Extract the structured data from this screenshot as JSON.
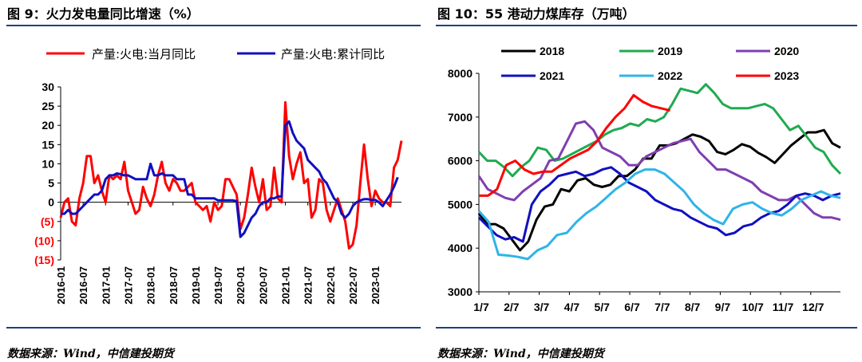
{
  "left": {
    "title": "图 9：火力发电量同比增速（%）",
    "source": "数据来源：Wind，中信建投期货"
  },
  "right": {
    "title": "图 10：55 港动力煤库存（万吨）",
    "source": "数据来源：Wind，中信建投期货"
  },
  "colors": {
    "rule": "#1f3f7f",
    "monthly": "#ff0000",
    "cumulative": "#1010c0",
    "s2018": "#000000",
    "s2019": "#1faa50",
    "s2020": "#7f3fb0",
    "s2021": "#1010c0",
    "s2022": "#2fb4e8",
    "s2023": "#ff0000",
    "neg_label": "#ff0000"
  },
  "chart_data": [
    {
      "type": "line",
      "title": "图 9：火力发电量同比增速（%）",
      "xlabel": "",
      "ylabel": "",
      "ylim": [
        -15,
        30
      ],
      "yticks": [
        30,
        25,
        20,
        15,
        10,
        5,
        0,
        -5,
        -10,
        -15
      ],
      "ytick_labels": [
        "30",
        "25",
        "20",
        "15",
        "10",
        "5",
        "0",
        "(5)",
        "(10)",
        "(15)"
      ],
      "x_start": "2016-01",
      "x_end": "2023-06",
      "xtick_labels": [
        "2016-01",
        "2016-07",
        "2017-01",
        "2017-07",
        "2018-01",
        "2018-07",
        "2019-01",
        "2019-07",
        "2020-01",
        "2020-07",
        "2021-01",
        "2021-07",
        "2022-01",
        "2022-07",
        "2023-01"
      ],
      "legend": "top",
      "series": [
        {
          "name": "产量:火电:当月同比",
          "color": "#ff0000",
          "values": [
            -4,
            0,
            1,
            -5,
            -6,
            1,
            5,
            12,
            12,
            5,
            7,
            3,
            0,
            7,
            6,
            7,
            6,
            10.5,
            3,
            0,
            -3,
            -2,
            4,
            1,
            -1,
            2,
            7,
            10.5,
            5,
            3,
            6,
            5,
            3,
            3,
            4,
            5,
            0,
            -1,
            -2,
            -1,
            -5,
            0,
            -2,
            -1,
            6,
            6,
            4,
            2,
            -7,
            -4,
            2,
            9,
            4,
            0,
            6,
            -2,
            -1,
            9,
            1,
            0,
            26,
            12,
            6,
            10,
            13,
            5,
            6,
            -4,
            -2,
            6,
            5,
            -2,
            -5,
            -2,
            1,
            -2,
            -5,
            -12,
            -11,
            -6,
            5,
            15,
            6,
            -1,
            3,
            1,
            0,
            0,
            -1,
            9,
            11,
            16
          ]
        },
        {
          "name": "产量:火电:累计同比",
          "color": "#1010c0",
          "values": [
            -3,
            -3,
            -2,
            -3,
            -3,
            -2,
            -1,
            0,
            1,
            2,
            2,
            3,
            6,
            7,
            7,
            7.5,
            7.3,
            7,
            7,
            6.5,
            6,
            6,
            6,
            6,
            10,
            7,
            7,
            7.5,
            7,
            7,
            7,
            6,
            6,
            6,
            2,
            2,
            1,
            1,
            1,
            1,
            1,
            1,
            0.5,
            0.5,
            0.5,
            0.5,
            0.5,
            0.3,
            -9,
            -8,
            -6,
            -4,
            -3,
            -1,
            0,
            0,
            1,
            1,
            1.5,
            1.5,
            20,
            21,
            18,
            16,
            15,
            14,
            11,
            10,
            9,
            8,
            6,
            5,
            3,
            1,
            0,
            -3,
            -4,
            -3,
            -1,
            0,
            0.5,
            0.8,
            0.8,
            0.6,
            0.6,
            0,
            -1,
            0.5,
            2,
            4,
            6.5
          ]
        }
      ]
    },
    {
      "type": "line",
      "title": "图 10：55 港动力煤库存（万吨）",
      "xlabel": "",
      "ylabel": "",
      "ylim": [
        3000,
        8000
      ],
      "yticks": [
        3000,
        4000,
        5000,
        6000,
        7000,
        8000
      ],
      "ytick_labels": [
        "3000",
        "4000",
        "5000",
        "6000",
        "7000",
        "8000"
      ],
      "x_unit": "week",
      "x_max": 52,
      "xtick_labels": [
        "1/7",
        "2/7",
        "3/7",
        "4/7",
        "5/7",
        "6/7",
        "7/7",
        "8/7",
        "9/7",
        "10/7",
        "11/7",
        "12/7"
      ],
      "legend": "top",
      "series": [
        {
          "name": "2018",
          "color": "#000000",
          "values": [
            4800,
            4550,
            4550,
            4450,
            4200,
            3950,
            4150,
            4650,
            4950,
            5000,
            5350,
            5300,
            5550,
            5600,
            5450,
            5400,
            5450,
            5650,
            5650,
            5800,
            6050,
            6050,
            6350,
            6350,
            6400,
            6500,
            6600,
            6550,
            6450,
            6200,
            6150,
            6250,
            6380,
            6320,
            6180,
            6080,
            5950,
            6150,
            6350,
            6500,
            6650,
            6650,
            6700,
            6400,
            6300
          ]
        },
        {
          "name": "2019",
          "color": "#1faa50",
          "values": [
            6200,
            6000,
            6000,
            5850,
            5650,
            5850,
            6000,
            6300,
            6250,
            6000,
            6050,
            6150,
            6250,
            6350,
            6450,
            6600,
            6700,
            6750,
            6850,
            6800,
            6950,
            6900,
            7000,
            7300,
            7650,
            7600,
            7550,
            7750,
            7550,
            7300,
            7200,
            7200,
            7200,
            7250,
            7300,
            7200,
            6950,
            6700,
            6800,
            6550,
            6300,
            6200,
            5900,
            5700
          ]
        },
        {
          "name": "2020",
          "color": "#7f3fb0",
          "values": [
            5650,
            5350,
            5250,
            5150,
            5100,
            5300,
            5450,
            5600,
            6000,
            6050,
            6450,
            6850,
            6900,
            6700,
            6300,
            6200,
            6100,
            5900,
            5900,
            6100,
            6200,
            6300,
            6400,
            6450,
            6500,
            6200,
            6000,
            5800,
            5800,
            5700,
            5600,
            5500,
            5300,
            5200,
            5100,
            5100,
            5200,
            5000,
            4800,
            4700,
            4700,
            4650
          ]
        },
        {
          "name": "2021",
          "color": "#1010c0",
          "values": [
            4700,
            4500,
            4300,
            4200,
            4250,
            4150,
            5000,
            5300,
            5450,
            5650,
            5700,
            5750,
            5650,
            5700,
            5800,
            5850,
            5700,
            5500,
            5400,
            5300,
            5100,
            5000,
            4900,
            4850,
            4700,
            4600,
            4500,
            4450,
            4300,
            4350,
            4500,
            4550,
            4700,
            4800,
            4850,
            5000,
            5200,
            5250,
            5200,
            5100,
            5200,
            5250
          ]
        },
        {
          "name": "2022",
          "color": "#2fb4e8",
          "values": [
            4850,
            4600,
            3850,
            3830,
            3800,
            3750,
            3950,
            4050,
            4300,
            4350,
            4600,
            4800,
            4950,
            5150,
            5350,
            5500,
            5700,
            5800,
            5800,
            5700,
            5500,
            5300,
            5000,
            4800,
            4650,
            4550,
            4900,
            5000,
            5050,
            4900,
            4800,
            4750,
            4900,
            5100,
            5200,
            5300,
            5200,
            5150
          ]
        },
        {
          "name": "2023",
          "color": "#ff0000",
          "values": [
            5200,
            5200,
            5350,
            5900,
            6000,
            5800,
            5700,
            5750,
            5750,
            5900,
            6050,
            6150,
            6250,
            6450,
            6750,
            7000,
            7200,
            7500,
            7350,
            7250,
            7200,
            7150
          ]
        }
      ]
    }
  ]
}
